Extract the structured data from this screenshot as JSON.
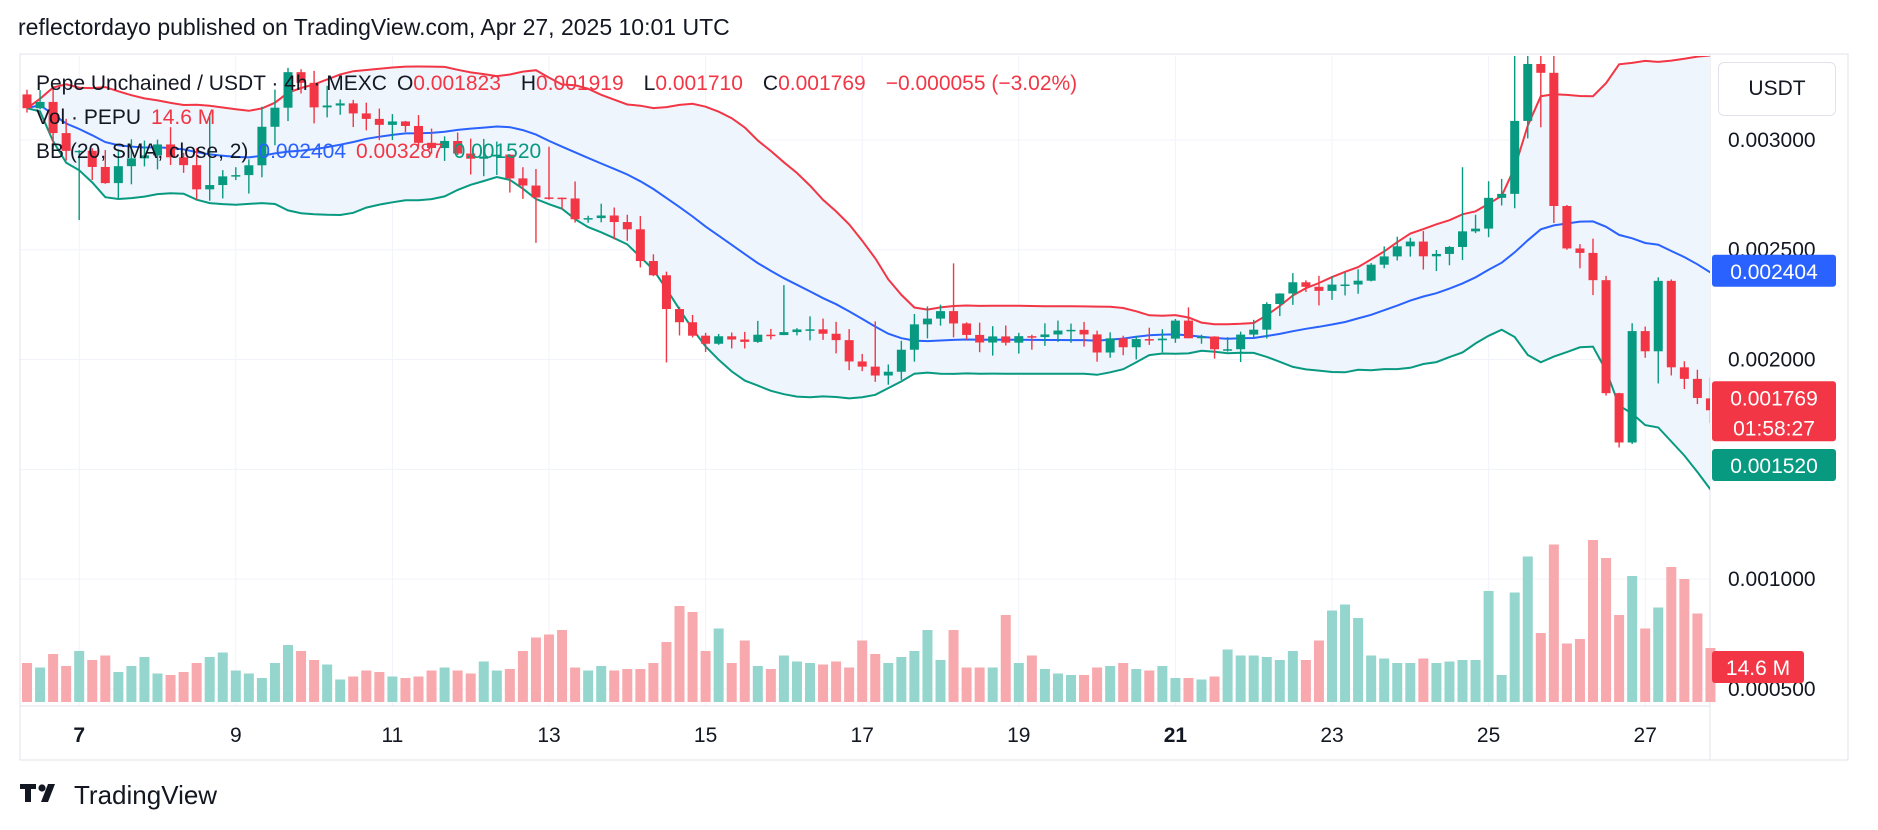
{
  "header": {
    "publisher_text": "reflectordayo published on TradingView.com, Apr 27, 2025 10:01 UTC"
  },
  "footer": {
    "brand": "TradingView",
    "logo_icon": "tradingview-logo-icon"
  },
  "currency_label": "USDT",
  "colors": {
    "up": "#089981",
    "down": "#f23645",
    "bb_upper": "#f23645",
    "bb_basis": "#2962ff",
    "bb_lower": "#089981",
    "vol_up": "#94d5cd",
    "vol_down": "#f7a9ae",
    "band_fill": "#eef5fc",
    "grid": "#f0f3fa"
  },
  "legend": {
    "symbol": "Pepe Unchained / USDT · 4h · MEXC",
    "o_label": "O",
    "o_value": "0.001823",
    "h_label": "H",
    "h_value": "0.001919",
    "l_label": "L",
    "l_value": "0.001710",
    "c_label": "C",
    "c_value": "0.001769",
    "change": "−0.000055 (−3.02%)",
    "vol_label": "Vol · PEPU",
    "vol_value": "14.6 M",
    "bb_label": "BB (20, SMA, close, 2)",
    "bb_basis": "0.002404",
    "bb_upper": "0.003287",
    "bb_lower": "0.001520"
  },
  "chart_data": {
    "type": "candlestick",
    "title": "Pepe Unchained / USDT · 4h · MEXC",
    "x_tick_labels": [
      "7",
      "9",
      "11",
      "13",
      "15",
      "17",
      "19",
      "21",
      "23",
      "25",
      "27"
    ],
    "bold_x_ticks": [
      "7",
      "21"
    ],
    "x_tick_index": [
      4,
      16,
      28,
      40,
      52,
      64,
      76,
      88,
      100,
      112,
      124
    ],
    "y_tick_labels": [
      "0.003000",
      "0.002500",
      "0.002000",
      "0.001000",
      "0.000500"
    ],
    "y_ticks": [
      0.003,
      0.0025,
      0.002,
      0.0015,
      0.001,
      0.0005
    ],
    "ylim": [
      0.00045,
      0.0034
    ],
    "grid": true,
    "price_badges": {
      "basis": {
        "label": "0.002404",
        "value": 0.002404
      },
      "last": {
        "label": "0.001769",
        "value": 0.001769,
        "countdown": "01:58:27"
      },
      "lower": {
        "label": "0.001520",
        "value": 0.00152
      },
      "volume": {
        "label": "14.6 M"
      }
    },
    "anchors": [
      [
        0,
        0.0032
      ],
      [
        3,
        0.00298
      ],
      [
        6,
        0.00282
      ],
      [
        10,
        0.00296
      ],
      [
        13,
        0.0028
      ],
      [
        16,
        0.00282
      ],
      [
        20,
        0.00326
      ],
      [
        24,
        0.00312
      ],
      [
        28,
        0.00304
      ],
      [
        32,
        0.00296
      ],
      [
        36,
        0.00294
      ],
      [
        38,
        0.00275
      ],
      [
        42,
        0.00268
      ],
      [
        44,
        0.00265
      ],
      [
        46,
        0.0026
      ],
      [
        48,
        0.00235
      ],
      [
        50,
        0.00218
      ],
      [
        52,
        0.00206
      ],
      [
        56,
        0.00212
      ],
      [
        60,
        0.00215
      ],
      [
        62,
        0.00208
      ],
      [
        64,
        0.00194
      ],
      [
        66,
        0.00192
      ],
      [
        68,
        0.00215
      ],
      [
        70,
        0.00222
      ],
      [
        72,
        0.00208
      ],
      [
        76,
        0.0021
      ],
      [
        79,
        0.00214
      ],
      [
        82,
        0.00206
      ],
      [
        85,
        0.0021
      ],
      [
        88,
        0.00214
      ],
      [
        92,
        0.00205
      ],
      [
        95,
        0.00222
      ],
      [
        97,
        0.00232
      ],
      [
        99,
        0.00228
      ],
      [
        102,
        0.0024
      ],
      [
        105,
        0.00256
      ],
      [
        108,
        0.00246
      ],
      [
        111,
        0.00262
      ],
      [
        113,
        0.00278
      ],
      [
        114,
        0.0031
      ],
      [
        115,
        0.0033
      ],
      [
        116,
        0.00335
      ],
      [
        117,
        0.0027
      ],
      [
        118,
        0.00255
      ],
      [
        120,
        0.00235
      ],
      [
        121,
        0.00182
      ],
      [
        122,
        0.00165
      ],
      [
        123,
        0.0021
      ],
      [
        124,
        0.00206
      ],
      [
        125,
        0.00232
      ],
      [
        126,
        0.00196
      ],
      [
        127,
        0.0019
      ],
      [
        128,
        0.00184
      ],
      [
        129,
        0.00177
      ]
    ],
    "volume_base": [
      2.6,
      2.3,
      3.2,
      2.4,
      3.4,
      2.8,
      3.1,
      2.0,
      2.4,
      3.0,
      1.9,
      1.8,
      2.0,
      2.6,
      3.0,
      3.3,
      2.1,
      1.9,
      1.6,
      2.6,
      3.8,
      3.4,
      2.8,
      2.5,
      1.5,
      1.7,
      2.1,
      2.0,
      1.7,
      1.6,
      1.7,
      2.1,
      2.3,
      2.1,
      1.9,
      2.7,
      2.1,
      2.2,
      3.4,
      4.3,
      4.5,
      4.8,
      2.3,
      2.1,
      2.4,
      2.1,
      2.2,
      2.2,
      2.6,
      4.0,
      6.4,
      6.0,
      3.4,
      4.9,
      2.6,
      4.1,
      2.4,
      2.2,
      3.1,
      2.7,
      2.6,
      2.5,
      2.7,
      2.3,
      4.1,
      3.2,
      2.6,
      3.0,
      3.4,
      4.8,
      2.8,
      4.8,
      2.3,
      2.3,
      2.3,
      5.8,
      2.6,
      3.1,
      2.2,
      1.9,
      1.8,
      1.8,
      2.3,
      2.4,
      2.6,
      2.2,
      2.1,
      2.4,
      1.6,
      1.6,
      1.5,
      1.7,
      3.5,
      3.1,
      3.1,
      3.0,
      2.8,
      3.4,
      2.8,
      4.1,
      6.1,
      6.5,
      5.6,
      3.1,
      2.9,
      2.6,
      2.6,
      2.9,
      2.6,
      2.7,
      2.8,
      2.8,
      7.4,
      1.8,
      7.3,
      9.7,
      4.6,
      10.5,
      3.9,
      4.2,
      10.8,
      9.6,
      5.8,
      8.4,
      4.9,
      6.3,
      9.0,
      8.2,
      5.9,
      3.6
    ],
    "vol_axis_max": 30
  }
}
